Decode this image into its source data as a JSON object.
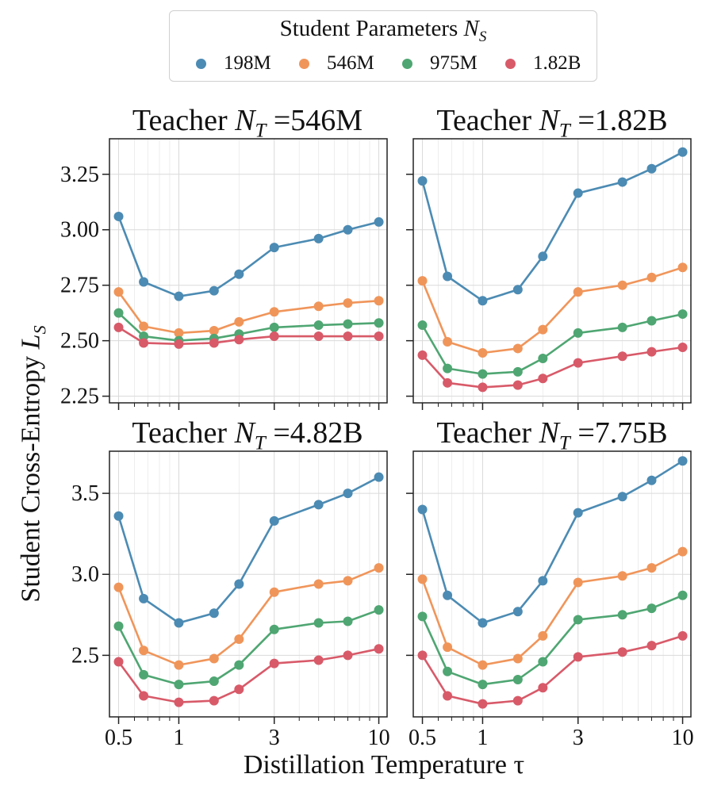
{
  "legend": {
    "title_prefix": "Student Parameters ",
    "title_symbol": "N",
    "title_subscript": "S"
  },
  "axes": {
    "y_label_prefix": "Student Cross-Entropy ",
    "y_label_symbol": "L",
    "y_label_subscript": "S",
    "x_label": "Distillation Temperature τ"
  },
  "colors": {
    "198M": "#4c8bb3",
    "546M": "#f0955a",
    "975M": "#4fa672",
    "1.82B": "#d85a69"
  },
  "chart_data": [
    {
      "type": "line",
      "title_prefix": "Teacher ",
      "title_symbol": "N",
      "title_subscript": "T",
      "title_suffix": " =546M",
      "x_scale": "log",
      "x": [
        0.5,
        0.667,
        1.0,
        1.5,
        2.0,
        3.0,
        5.0,
        7.0,
        10.0
      ],
      "x_ticks": [
        0.5,
        1,
        3,
        10
      ],
      "x_tick_labels": [
        "0.5",
        "1",
        "3",
        "10"
      ],
      "ylim": [
        2.22,
        3.41
      ],
      "y_ticks": [
        2.25,
        2.5,
        2.75,
        3.0,
        3.25
      ],
      "y_tick_labels": [
        "2.25",
        "2.50",
        "2.75",
        "3.00",
        "3.25"
      ],
      "grid": true,
      "series": [
        {
          "name": "198M",
          "values": [
            3.06,
            2.765,
            2.7,
            2.725,
            2.8,
            2.92,
            2.96,
            3.0,
            3.035
          ]
        },
        {
          "name": "546M",
          "values": [
            2.72,
            2.565,
            2.535,
            2.545,
            2.585,
            2.63,
            2.655,
            2.67,
            2.68
          ]
        },
        {
          "name": "975M",
          "values": [
            2.625,
            2.52,
            2.5,
            2.51,
            2.53,
            2.56,
            2.57,
            2.575,
            2.58
          ]
        },
        {
          "name": "1.82B",
          "values": [
            2.56,
            2.49,
            2.485,
            2.49,
            2.505,
            2.52,
            2.52,
            2.52,
            2.52
          ]
        }
      ]
    },
    {
      "type": "line",
      "title_prefix": "Teacher ",
      "title_symbol": "N",
      "title_subscript": "T",
      "title_suffix": " =1.82B",
      "x_scale": "log",
      "x": [
        0.5,
        0.667,
        1.0,
        1.5,
        2.0,
        3.0,
        5.0,
        7.0,
        10.0
      ],
      "x_ticks": [
        0.5,
        1,
        3,
        10
      ],
      "x_tick_labels": [
        "0.5",
        "1",
        "3",
        "10"
      ],
      "ylim": [
        2.22,
        3.41
      ],
      "y_ticks": [
        2.25,
        2.5,
        2.75,
        3.0,
        3.25
      ],
      "y_tick_labels": [
        "",
        "",
        "",
        "",
        ""
      ],
      "grid": true,
      "series": [
        {
          "name": "198M",
          "values": [
            3.22,
            2.79,
            2.68,
            2.73,
            2.88,
            3.165,
            3.215,
            3.275,
            3.35
          ]
        },
        {
          "name": "546M",
          "values": [
            2.77,
            2.495,
            2.445,
            2.465,
            2.55,
            2.72,
            2.75,
            2.785,
            2.83
          ]
        },
        {
          "name": "975M",
          "values": [
            2.57,
            2.375,
            2.35,
            2.36,
            2.42,
            2.535,
            2.56,
            2.59,
            2.62
          ]
        },
        {
          "name": "1.82B",
          "values": [
            2.435,
            2.31,
            2.29,
            2.3,
            2.33,
            2.4,
            2.43,
            2.45,
            2.47
          ]
        }
      ]
    },
    {
      "type": "line",
      "title_prefix": "Teacher ",
      "title_symbol": "N",
      "title_subscript": "T",
      "title_suffix": " =4.82B",
      "x_scale": "log",
      "x": [
        0.5,
        0.667,
        1.0,
        1.5,
        2.0,
        3.0,
        5.0,
        7.0,
        10.0
      ],
      "x_ticks": [
        0.5,
        1,
        3,
        10
      ],
      "x_tick_labels": [
        "0.5",
        "1",
        "3",
        "10"
      ],
      "ylim": [
        2.12,
        3.76
      ],
      "y_ticks": [
        2.5,
        3.0,
        3.5
      ],
      "y_tick_labels": [
        "2.5",
        "3.0",
        "3.5"
      ],
      "grid": true,
      "series": [
        {
          "name": "198M",
          "values": [
            3.36,
            2.85,
            2.7,
            2.76,
            2.94,
            3.33,
            3.43,
            3.5,
            3.6
          ]
        },
        {
          "name": "546M",
          "values": [
            2.92,
            2.53,
            2.44,
            2.48,
            2.6,
            2.89,
            2.94,
            2.96,
            3.04
          ]
        },
        {
          "name": "975M",
          "values": [
            2.68,
            2.38,
            2.32,
            2.34,
            2.44,
            2.66,
            2.7,
            2.71,
            2.78
          ]
        },
        {
          "name": "1.82B",
          "values": [
            2.46,
            2.25,
            2.21,
            2.22,
            2.29,
            2.45,
            2.47,
            2.5,
            2.54
          ]
        }
      ]
    },
    {
      "type": "line",
      "title_prefix": "Teacher ",
      "title_symbol": "N",
      "title_subscript": "T",
      "title_suffix": " =7.75B",
      "x_scale": "log",
      "x": [
        0.5,
        0.667,
        1.0,
        1.5,
        2.0,
        3.0,
        5.0,
        7.0,
        10.0
      ],
      "x_ticks": [
        0.5,
        1,
        3,
        10
      ],
      "x_tick_labels": [
        "0.5",
        "1",
        "3",
        "10"
      ],
      "ylim": [
        2.12,
        3.76
      ],
      "y_ticks": [
        2.5,
        3.0,
        3.5
      ],
      "y_tick_labels": [
        "",
        "",
        ""
      ],
      "grid": true,
      "series": [
        {
          "name": "198M",
          "values": [
            3.4,
            2.87,
            2.7,
            2.77,
            2.96,
            3.38,
            3.48,
            3.58,
            3.7
          ]
        },
        {
          "name": "546M",
          "values": [
            2.97,
            2.55,
            2.44,
            2.48,
            2.62,
            2.95,
            2.99,
            3.04,
            3.14
          ]
        },
        {
          "name": "975M",
          "values": [
            2.74,
            2.4,
            2.32,
            2.35,
            2.46,
            2.72,
            2.75,
            2.79,
            2.87
          ]
        },
        {
          "name": "1.82B",
          "values": [
            2.5,
            2.25,
            2.2,
            2.22,
            2.3,
            2.49,
            2.52,
            2.56,
            2.62
          ]
        }
      ]
    }
  ]
}
